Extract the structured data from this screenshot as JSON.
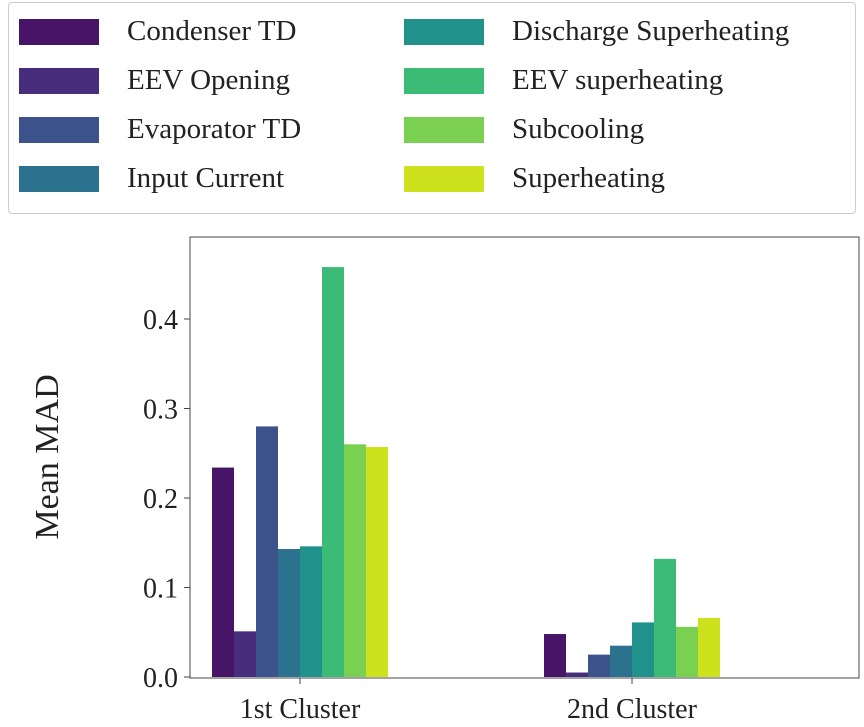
{
  "chart_data": {
    "type": "bar",
    "title": "",
    "xlabel": "",
    "ylabel": "Mean MAD",
    "ylim": [
      0,
      0.48
    ],
    "yticks": [
      "0.0",
      "0.1",
      "0.2",
      "0.3",
      "0.4"
    ],
    "ytick_values": [
      0,
      0.1,
      0.2,
      0.3,
      0.4
    ],
    "categories": [
      "1st Cluster",
      "2nd Cluster"
    ],
    "legend_placement": "top (above plot, 2 columns)",
    "series": [
      {
        "name": "Condenser TD",
        "color": "#481467",
        "values": [
          0.234,
          0.048
        ]
      },
      {
        "name": "EEV Opening",
        "color": "#472d7b",
        "values": [
          0.051,
          0.005
        ]
      },
      {
        "name": "Evaporator TD",
        "color": "#3b528b",
        "values": [
          0.28,
          0.025
        ]
      },
      {
        "name": "Input Current",
        "color": "#2c728e",
        "values": [
          0.143,
          0.035
        ]
      },
      {
        "name": "Discharge Superheating",
        "color": "#21918c",
        "values": [
          0.146,
          0.061
        ]
      },
      {
        "name": "EEV superheating",
        "color": "#3bbb75",
        "values": [
          0.458,
          0.132
        ]
      },
      {
        "name": "Subcooling",
        "color": "#7ad151",
        "values": [
          0.26,
          0.056
        ]
      },
      {
        "name": "Superheating",
        "color": "#cde11d",
        "values": [
          0.257,
          0.066
        ]
      }
    ]
  }
}
